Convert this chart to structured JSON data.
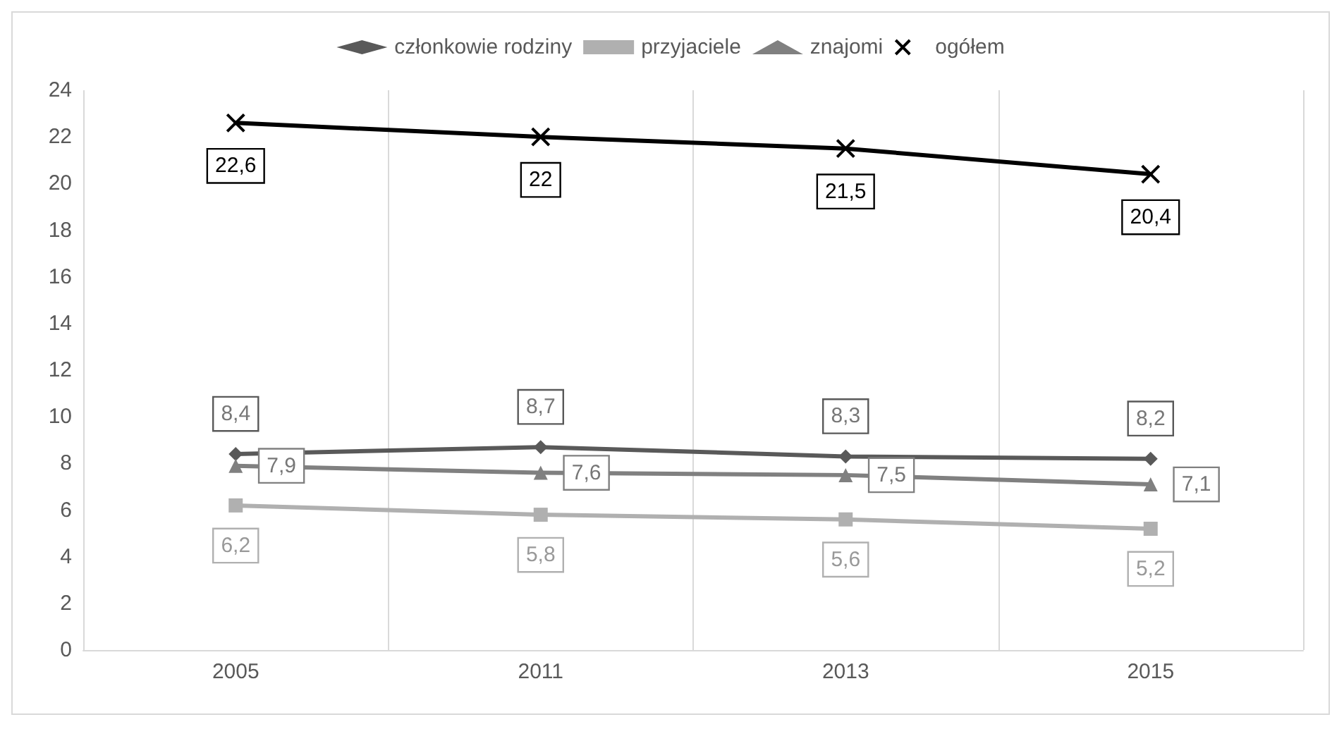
{
  "chart_data": {
    "type": "line",
    "categories": [
      "2005",
      "2011",
      "2013",
      "2015"
    ],
    "series": [
      {
        "name": "członkowie rodziny",
        "color": "#595959",
        "marker": "diamond",
        "values": [
          8.4,
          8.7,
          8.3,
          8.2
        ],
        "value_labels": [
          "8,4",
          "8,7",
          "8,3",
          "8,2"
        ]
      },
      {
        "name": "przyjaciele",
        "color": "#b0b0b0",
        "marker": "square",
        "values": [
          6.2,
          5.8,
          5.6,
          5.2
        ],
        "value_labels": [
          "6,2",
          "5,8",
          "5,6",
          "5,2"
        ]
      },
      {
        "name": "znajomi",
        "color": "#808080",
        "marker": "triangle",
        "values": [
          7.9,
          7.6,
          7.5,
          7.1
        ],
        "value_labels": [
          "7,9",
          "7,6",
          "7,5",
          "7,1"
        ]
      },
      {
        "name": "ogółem",
        "color": "#000000",
        "marker": "cross",
        "values": [
          22.6,
          22,
          21.5,
          20.4
        ],
        "value_labels": [
          "22,6",
          "22",
          "21,5",
          "20,4"
        ]
      }
    ],
    "ylim": [
      0,
      24
    ],
    "yticks": [
      0,
      2,
      4,
      6,
      8,
      10,
      12,
      14,
      16,
      18,
      20,
      22,
      24
    ],
    "grid": "x",
    "legend": "top",
    "line_style": "solid"
  }
}
